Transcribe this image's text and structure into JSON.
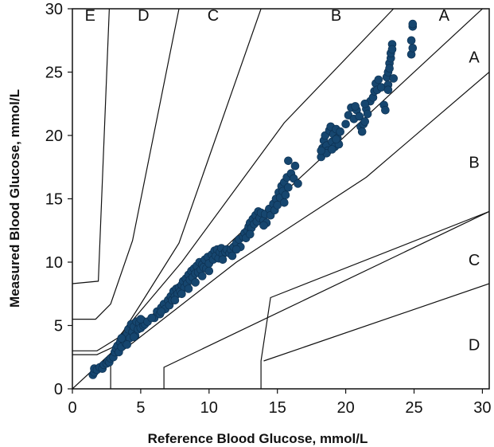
{
  "chart_data": {
    "type": "scatter",
    "title": "",
    "xlabel": "Reference Blood Glucose, mmol/L",
    "ylabel": "Measured Blood Glucose, mmol/L",
    "xlim": [
      0,
      30.5
    ],
    "ylim": [
      0,
      30
    ],
    "x_ticks": [
      "0",
      "5",
      "10",
      "15",
      "20",
      "25",
      "30"
    ],
    "y_ticks": [
      "0",
      "5",
      "10",
      "15",
      "20",
      "25",
      "30"
    ],
    "grid": false,
    "legend": "none",
    "point_color": "#16466f",
    "zone_lines": [
      {
        "name": "A-B upper",
        "points": [
          [
            0,
            0
          ],
          [
            30.5,
            30.5
          ]
        ]
      },
      {
        "name": "A-B lower",
        "points": [
          [
            2.8,
            0
          ],
          [
            2.8,
            2.5
          ]
        ]
      },
      {
        "name": "B-C upper",
        "points": [
          [
            0,
            3.0
          ],
          [
            1.8,
            3.0
          ],
          [
            3.3,
            4.0
          ],
          [
            8.0,
            10.0
          ],
          [
            15.5,
            21.0
          ],
          [
            23.5,
            30.0
          ]
        ]
      },
      {
        "name": "B-C lower",
        "points": [
          [
            3.3,
            2.7
          ],
          [
            12.0,
            10.0
          ],
          [
            21.5,
            16.7
          ],
          [
            30.5,
            25.0
          ]
        ]
      },
      {
        "name": "C-D upper",
        "points": [
          [
            0,
            2.7
          ],
          [
            1.8,
            2.7
          ],
          [
            3.0,
            3.3
          ],
          [
            5.0,
            6.7
          ],
          [
            7.8,
            11.5
          ],
          [
            13.8,
            30.0
          ]
        ]
      },
      {
        "name": "C-D lower",
        "points": [
          [
            6.7,
            0
          ],
          [
            6.7,
            1.7
          ],
          [
            30.5,
            14.0
          ]
        ]
      },
      {
        "name": "D-E upper",
        "points": [
          [
            0,
            5.5
          ],
          [
            1.7,
            5.5
          ],
          [
            2.8,
            6.7
          ],
          [
            4.4,
            11.7
          ],
          [
            7.8,
            30.0
          ]
        ]
      },
      {
        "name": "D-E lower",
        "points": [
          [
            13.8,
            0
          ],
          [
            13.8,
            2.2
          ],
          [
            14.5,
            7.2
          ],
          [
            30.5,
            14.0
          ]
        ]
      },
      {
        "name": "E boundary",
        "points": [
          [
            0,
            8.3
          ],
          [
            1.9,
            8.5
          ],
          [
            2.7,
            30.0
          ]
        ]
      },
      {
        "name": "lower D",
        "points": [
          [
            14.0,
            2.2
          ],
          [
            30.5,
            8.3
          ]
        ]
      }
    ],
    "zone_labels": [
      {
        "text": "E",
        "x": 1.3,
        "y": 29.5
      },
      {
        "text": "D",
        "x": 5.2,
        "y": 29.5
      },
      {
        "text": "C",
        "x": 10.3,
        "y": 29.5
      },
      {
        "text": "B",
        "x": 19.3,
        "y": 29.5
      },
      {
        "text": "A",
        "x": 27.2,
        "y": 29.5
      },
      {
        "text": "A",
        "x": 29.4,
        "y": 26.2
      },
      {
        "text": "B",
        "x": 29.4,
        "y": 17.9
      },
      {
        "text": "C",
        "x": 29.4,
        "y": 10.2
      },
      {
        "text": "D",
        "x": 29.4,
        "y": 3.5
      }
    ],
    "points": [
      [
        1.5,
        1.1
      ],
      [
        1.6,
        1.3
      ],
      [
        1.6,
        1.6
      ],
      [
        1.8,
        1.5
      ],
      [
        2.0,
        1.7
      ],
      [
        2.2,
        1.6
      ],
      [
        2.3,
        1.9
      ],
      [
        2.5,
        2.0
      ],
      [
        2.6,
        2.2
      ],
      [
        2.7,
        2.1
      ],
      [
        2.8,
        2.4
      ],
      [
        3.0,
        2.5
      ],
      [
        3.1,
        2.9
      ],
      [
        3.2,
        3.2
      ],
      [
        3.3,
        3.4
      ],
      [
        3.4,
        2.9
      ],
      [
        3.5,
        3.7
      ],
      [
        3.6,
        3.3
      ],
      [
        3.7,
        3.9
      ],
      [
        3.8,
        4.1
      ],
      [
        3.9,
        3.6
      ],
      [
        4.0,
        4.3
      ],
      [
        4.1,
        4.7
      ],
      [
        4.2,
        4.0
      ],
      [
        4.3,
        5.1
      ],
      [
        4.4,
        4.5
      ],
      [
        4.5,
        4.9
      ],
      [
        4.6,
        4.2
      ],
      [
        4.7,
        5.3
      ],
      [
        4.8,
        4.7
      ],
      [
        4.9,
        5.2
      ],
      [
        5.0,
        4.8
      ],
      [
        5.1,
        5.4
      ],
      [
        5.2,
        5.0
      ],
      [
        5.3,
        5.1
      ],
      [
        4.0,
        3.5
      ],
      [
        4.5,
        4.1
      ],
      [
        3.6,
        4.0
      ],
      [
        5.0,
        5.5
      ],
      [
        5.5,
        5.3
      ],
      [
        6.0,
        5.6
      ],
      [
        6.2,
        6.1
      ],
      [
        6.4,
        5.9
      ],
      [
        6.5,
        6.4
      ],
      [
        6.7,
        6.7
      ],
      [
        6.8,
        6.3
      ],
      [
        7.0,
        7.0
      ],
      [
        7.1,
        6.6
      ],
      [
        7.2,
        7.3
      ],
      [
        7.3,
        7.0
      ],
      [
        7.4,
        7.7
      ],
      [
        7.5,
        7.3
      ],
      [
        7.6,
        7.9
      ],
      [
        7.7,
        7.5
      ],
      [
        7.8,
        8.0
      ],
      [
        7.9,
        7.7
      ],
      [
        8.0,
        8.2
      ],
      [
        8.1,
        8.5
      ],
      [
        8.2,
        8.0
      ],
      [
        8.3,
        8.7
      ],
      [
        8.4,
        8.3
      ],
      [
        8.5,
        9.0
      ],
      [
        8.6,
        8.6
      ],
      [
        8.7,
        9.3
      ],
      [
        8.8,
        8.8
      ],
      [
        8.9,
        9.5
      ],
      [
        9.0,
        9.1
      ],
      [
        9.1,
        9.7
      ],
      [
        9.2,
        9.2
      ],
      [
        9.3,
        10.0
      ],
      [
        9.4,
        9.4
      ],
      [
        9.5,
        9.8
      ],
      [
        9.6,
        9.6
      ],
      [
        9.7,
        10.2
      ],
      [
        9.8,
        9.5
      ],
      [
        9.9,
        10.4
      ],
      [
        10.0,
        9.9
      ],
      [
        10.2,
        10.6
      ],
      [
        10.3,
        10.2
      ],
      [
        10.4,
        10.9
      ],
      [
        10.5,
        10.5
      ],
      [
        10.6,
        11.0
      ],
      [
        10.7,
        10.3
      ],
      [
        10.8,
        10.8
      ],
      [
        10.9,
        11.1
      ],
      [
        11.0,
        10.6
      ],
      [
        11.2,
        10.8
      ],
      [
        11.3,
        11.0
      ],
      [
        11.5,
        10.7
      ],
      [
        11.6,
        11.0
      ],
      [
        11.7,
        10.5
      ],
      [
        11.8,
        11.2
      ],
      [
        12.0,
        11.5
      ],
      [
        12.2,
        11.8
      ],
      [
        12.3,
        11.2
      ],
      [
        12.5,
        12.0
      ],
      [
        12.6,
        12.3
      ],
      [
        12.7,
        11.9
      ],
      [
        12.8,
        12.5
      ],
      [
        12.9,
        12.8
      ],
      [
        13.0,
        13.1
      ],
      [
        13.1,
        12.7
      ],
      [
        13.2,
        13.4
      ],
      [
        13.3,
        13.0
      ],
      [
        13.4,
        13.7
      ],
      [
        13.5,
        13.2
      ],
      [
        13.6,
        14.0
      ],
      [
        13.7,
        13.5
      ],
      [
        13.8,
        13.9
      ],
      [
        14.0,
        13.3
      ],
      [
        14.1,
        13.8
      ],
      [
        14.2,
        13.1
      ],
      [
        14.4,
        14.2
      ],
      [
        14.5,
        13.7
      ],
      [
        14.7,
        14.6
      ],
      [
        14.8,
        14.1
      ],
      [
        14.9,
        15.0
      ],
      [
        15.0,
        14.5
      ],
      [
        15.1,
        15.5
      ],
      [
        15.2,
        15.1
      ],
      [
        15.3,
        16.0
      ],
      [
        15.4,
        15.6
      ],
      [
        15.5,
        16.3
      ],
      [
        15.6,
        15.3
      ],
      [
        15.7,
        16.7
      ],
      [
        15.8,
        15.9
      ],
      [
        16.0,
        17.0
      ],
      [
        16.2,
        16.6
      ],
      [
        16.3,
        17.6
      ],
      [
        15.8,
        18.0
      ],
      [
        15.5,
        14.7
      ],
      [
        16.5,
        16.2
      ],
      [
        8.5,
        7.9
      ],
      [
        9.0,
        8.4
      ],
      [
        9.5,
        8.9
      ],
      [
        10.0,
        9.3
      ],
      [
        11.0,
        10.2
      ],
      [
        12.0,
        11.0
      ],
      [
        13.0,
        12.2
      ],
      [
        14.0,
        12.9
      ],
      [
        8.0,
        7.5
      ],
      [
        7.5,
        7.0
      ],
      [
        6.5,
        6.1
      ],
      [
        5.8,
        5.6
      ],
      [
        18.2,
        18.3
      ],
      [
        18.3,
        19.0
      ],
      [
        18.4,
        19.6
      ],
      [
        18.5,
        20.0
      ],
      [
        18.6,
        19.2
      ],
      [
        18.7,
        18.8
      ],
      [
        18.8,
        20.4
      ],
      [
        18.9,
        20.7
      ],
      [
        19.0,
        19.5
      ],
      [
        19.1,
        20.1
      ],
      [
        19.2,
        19.1
      ],
      [
        19.3,
        20.5
      ],
      [
        19.4,
        19.8
      ],
      [
        19.5,
        19.3
      ],
      [
        19.6,
        20.3
      ],
      [
        18.6,
        18.6
      ],
      [
        19.0,
        18.9
      ],
      [
        19.3,
        19.7
      ],
      [
        18.2,
        18.8
      ],
      [
        20.0,
        20.9
      ],
      [
        20.2,
        21.6
      ],
      [
        20.4,
        22.2
      ],
      [
        20.6,
        21.3
      ],
      [
        20.8,
        22.0
      ],
      [
        21.0,
        21.5
      ],
      [
        21.1,
        20.7
      ],
      [
        21.2,
        20.3
      ],
      [
        21.3,
        20.9
      ],
      [
        21.4,
        21.1
      ],
      [
        21.5,
        22.1
      ],
      [
        21.6,
        21.7
      ],
      [
        21.8,
        22.7
      ],
      [
        22.0,
        23.0
      ],
      [
        22.1,
        23.5
      ],
      [
        22.2,
        24.1
      ],
      [
        22.3,
        23.6
      ],
      [
        22.4,
        24.4
      ],
      [
        22.6,
        23.8
      ],
      [
        22.8,
        22.4
      ],
      [
        22.9,
        22.0
      ],
      [
        23.0,
        24.6
      ],
      [
        23.1,
        25.0
      ],
      [
        23.1,
        24.0
      ],
      [
        23.2,
        25.7
      ],
      [
        23.2,
        25.3
      ],
      [
        23.3,
        26.1
      ],
      [
        23.3,
        26.5
      ],
      [
        23.4,
        27.2
      ],
      [
        23.4,
        26.8
      ],
      [
        23.5,
        24.5
      ],
      [
        23.1,
        23.6
      ],
      [
        24.8,
        26.4
      ],
      [
        24.9,
        26.9
      ],
      [
        24.8,
        27.5
      ],
      [
        24.9,
        28.6
      ],
      [
        24.9,
        28.8
      ],
      [
        20.7,
        22.3
      ],
      [
        21.4,
        22.5
      ]
    ]
  }
}
